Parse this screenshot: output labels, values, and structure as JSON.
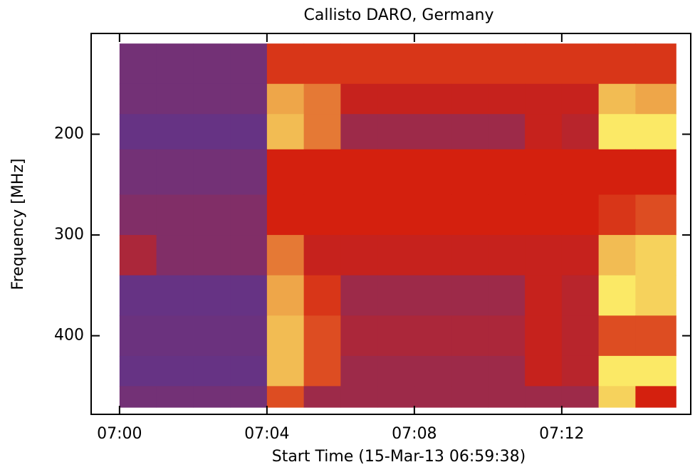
{
  "chart_data": {
    "type": "heatmap",
    "title": "Callisto DARO, Germany",
    "x_label": "Start Time (15-Mar-13 06:59:38)",
    "y_label": "Frequency [MHz]",
    "xlim": [
      -0.77,
      15.5
    ],
    "ylim": [
      478,
      100
    ],
    "xticks": [
      {
        "value": 0,
        "label": "07:00"
      },
      {
        "value": 4,
        "label": "07:04"
      },
      {
        "value": 8,
        "label": "07:08"
      },
      {
        "value": 12,
        "label": "07:12"
      }
    ],
    "yticks": [
      200,
      300,
      400
    ],
    "xbins": [
      0,
      1,
      2,
      3,
      4,
      5,
      6,
      7,
      8,
      9,
      10,
      11,
      12,
      13,
      14,
      15.1
    ],
    "ybins": [
      110,
      150,
      180,
      215,
      260,
      300,
      340,
      380,
      420,
      450,
      471
    ],
    "colormap": [
      "#4a38a2",
      "#d4200e",
      "#ffff70"
    ],
    "z": [
      [
        0.15,
        0.15,
        0.15,
        0.15,
        0.55,
        0.55,
        0.55,
        0.55,
        0.55,
        0.55,
        0.55,
        0.55,
        0.55,
        0.55,
        0.55
      ],
      [
        0.15,
        0.15,
        0.15,
        0.15,
        0.8,
        0.7,
        0.45,
        0.45,
        0.45,
        0.45,
        0.45,
        0.45,
        0.45,
        0.85,
        0.8
      ],
      [
        0.1,
        0.1,
        0.1,
        0.1,
        0.85,
        0.7,
        0.3,
        0.3,
        0.3,
        0.3,
        0.3,
        0.45,
        0.4,
        0.95,
        0.95
      ],
      [
        0.15,
        0.15,
        0.15,
        0.15,
        0.5,
        0.5,
        0.5,
        0.5,
        0.5,
        0.5,
        0.5,
        0.5,
        0.5,
        0.5,
        0.5
      ],
      [
        0.2,
        0.2,
        0.2,
        0.2,
        0.5,
        0.5,
        0.5,
        0.5,
        0.5,
        0.5,
        0.5,
        0.5,
        0.5,
        0.55,
        0.6
      ],
      [
        0.35,
        0.2,
        0.2,
        0.2,
        0.7,
        0.45,
        0.45,
        0.45,
        0.45,
        0.45,
        0.45,
        0.45,
        0.45,
        0.85,
        0.9
      ],
      [
        0.1,
        0.1,
        0.1,
        0.1,
        0.8,
        0.55,
        0.3,
        0.3,
        0.3,
        0.3,
        0.3,
        0.45,
        0.4,
        0.95,
        0.9
      ],
      [
        0.12,
        0.12,
        0.12,
        0.12,
        0.85,
        0.6,
        0.35,
        0.35,
        0.35,
        0.35,
        0.35,
        0.45,
        0.4,
        0.6,
        0.6
      ],
      [
        0.1,
        0.1,
        0.1,
        0.1,
        0.85,
        0.6,
        0.3,
        0.3,
        0.3,
        0.3,
        0.3,
        0.45,
        0.4,
        0.95,
        0.95
      ],
      [
        0.15,
        0.15,
        0.15,
        0.15,
        0.6,
        0.3,
        0.3,
        0.3,
        0.3,
        0.3,
        0.3,
        0.3,
        0.3,
        0.9,
        0.5
      ]
    ]
  }
}
